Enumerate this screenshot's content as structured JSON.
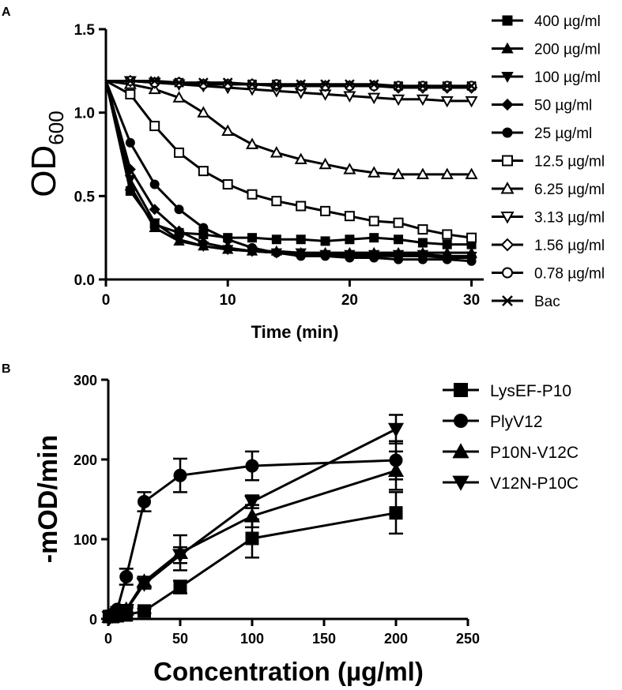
{
  "chart_data": [
    {
      "panel": "A",
      "type": "line",
      "title": "",
      "xlabel": "Time (min)",
      "ylabel": "OD",
      "ylabel_subscript": "600",
      "xlim": [
        0,
        31
      ],
      "ylim": [
        0,
        1.5
      ],
      "xticks": [
        0,
        10,
        20,
        30
      ],
      "xtick_labels": [
        "0",
        "10",
        "20",
        "30"
      ],
      "yticks": [
        0,
        0.5,
        1.0,
        1.5
      ],
      "ytick_labels": [
        "0.0",
        "0.5",
        "1.0",
        "1.5"
      ],
      "x": [
        0,
        2,
        4,
        6,
        8,
        10,
        12,
        14,
        16,
        18,
        20,
        22,
        24,
        26,
        28,
        30
      ],
      "legend_position": "right",
      "series": [
        {
          "name": "400 µg/ml",
          "marker": "square-filled",
          "values": [
            1.19,
            0.53,
            0.33,
            0.28,
            0.27,
            0.25,
            0.25,
            0.24,
            0.24,
            0.23,
            0.24,
            0.25,
            0.24,
            0.22,
            0.21,
            0.21
          ]
        },
        {
          "name": "200 µg/ml",
          "marker": "triangle-up-filled",
          "values": [
            1.19,
            0.56,
            0.31,
            0.23,
            0.2,
            0.18,
            0.17,
            0.17,
            0.16,
            0.16,
            0.16,
            0.16,
            0.16,
            0.16,
            0.16,
            0.16
          ]
        },
        {
          "name": "100 µg/ml",
          "marker": "triangle-down-filled",
          "values": [
            1.19,
            0.6,
            0.34,
            0.24,
            0.2,
            0.18,
            0.17,
            0.16,
            0.16,
            0.15,
            0.15,
            0.15,
            0.15,
            0.15,
            0.14,
            0.14
          ]
        },
        {
          "name": "50 µg/ml",
          "marker": "diamond-filled",
          "values": [
            1.19,
            0.66,
            0.42,
            0.29,
            0.22,
            0.19,
            0.17,
            0.16,
            0.15,
            0.15,
            0.14,
            0.14,
            0.14,
            0.14,
            0.13,
            0.13
          ]
        },
        {
          "name": "25 µg/ml",
          "marker": "circle-filled",
          "values": [
            1.19,
            0.82,
            0.57,
            0.42,
            0.31,
            0.24,
            0.19,
            0.16,
            0.14,
            0.14,
            0.13,
            0.13,
            0.12,
            0.12,
            0.12,
            0.11
          ]
        },
        {
          "name": "12.5 µg/ml",
          "marker": "square-open",
          "values": [
            1.19,
            1.11,
            0.92,
            0.76,
            0.65,
            0.57,
            0.51,
            0.47,
            0.44,
            0.41,
            0.38,
            0.35,
            0.34,
            0.3,
            0.27,
            0.25
          ]
        },
        {
          "name": "6.25 µg/ml",
          "marker": "triangle-up-open",
          "values": [
            1.19,
            1.17,
            1.14,
            1.09,
            1.0,
            0.89,
            0.81,
            0.76,
            0.72,
            0.69,
            0.66,
            0.64,
            0.63,
            0.63,
            0.63,
            0.63
          ]
        },
        {
          "name": "3.13 µg/ml",
          "marker": "triangle-down-open",
          "values": [
            1.19,
            1.19,
            1.18,
            1.17,
            1.16,
            1.15,
            1.14,
            1.13,
            1.12,
            1.11,
            1.1,
            1.09,
            1.08,
            1.08,
            1.07,
            1.07
          ]
        },
        {
          "name": "1.56 µg/ml",
          "marker": "diamond-open",
          "values": [
            1.19,
            1.19,
            1.18,
            1.18,
            1.17,
            1.17,
            1.17,
            1.16,
            1.16,
            1.16,
            1.16,
            1.16,
            1.15,
            1.15,
            1.15,
            1.15
          ]
        },
        {
          "name": "0.78 µg/ml",
          "marker": "circle-open",
          "values": [
            1.19,
            1.19,
            1.18,
            1.18,
            1.17,
            1.17,
            1.17,
            1.17,
            1.16,
            1.16,
            1.16,
            1.16,
            1.16,
            1.16,
            1.16,
            1.16
          ]
        },
        {
          "name": "Bac",
          "marker": "x",
          "values": [
            1.19,
            1.19,
            1.19,
            1.18,
            1.18,
            1.18,
            1.17,
            1.17,
            1.17,
            1.17,
            1.17,
            1.17,
            1.16,
            1.16,
            1.16,
            1.16
          ]
        }
      ]
    },
    {
      "panel": "B",
      "type": "line",
      "title": "",
      "xlabel": "Concentration (µg/ml)",
      "ylabel": "-mOD/min",
      "xlim": [
        0,
        250
      ],
      "ylim": [
        0,
        300
      ],
      "xticks": [
        0,
        50,
        100,
        150,
        200,
        250
      ],
      "xtick_labels": [
        "0",
        "50",
        "100",
        "150",
        "200",
        "250"
      ],
      "yticks": [
        0,
        100,
        200,
        300
      ],
      "ytick_labels": [
        "0",
        "100",
        "200",
        "300"
      ],
      "x": [
        0.78,
        1.56,
        3.13,
        6.25,
        12.5,
        25,
        50,
        100,
        200
      ],
      "legend_position": "right",
      "series": [
        {
          "name": "LysEF-P10",
          "marker": "square-filled",
          "values": [
            3,
            3,
            3,
            4,
            5,
            10,
            40,
            101,
            133
          ],
          "errors": [
            1,
            1,
            1,
            1,
            2,
            3,
            8,
            24,
            26
          ]
        },
        {
          "name": "PlyV12",
          "marker": "circle-filled",
          "values": [
            3,
            4,
            6,
            12,
            53,
            147,
            180,
            192,
            199
          ],
          "errors": [
            1,
            1,
            2,
            3,
            10,
            12,
            21,
            18,
            24
          ]
        },
        {
          "name": "P10N-V12C",
          "marker": "triangle-up-filled",
          "values": [
            3,
            3,
            4,
            6,
            12,
            47,
            83,
            129,
            186
          ],
          "errors": [
            1,
            1,
            1,
            2,
            4,
            6,
            22,
            14,
            24
          ]
        },
        {
          "name": "V12N-P10C",
          "marker": "triangle-down-filled",
          "values": [
            2,
            3,
            4,
            5,
            11,
            44,
            80,
            147,
            238
          ],
          "errors": [
            1,
            1,
            1,
            2,
            3,
            6,
            10,
            8,
            18
          ]
        }
      ]
    }
  ],
  "panel_labels": [
    "A",
    "B"
  ]
}
